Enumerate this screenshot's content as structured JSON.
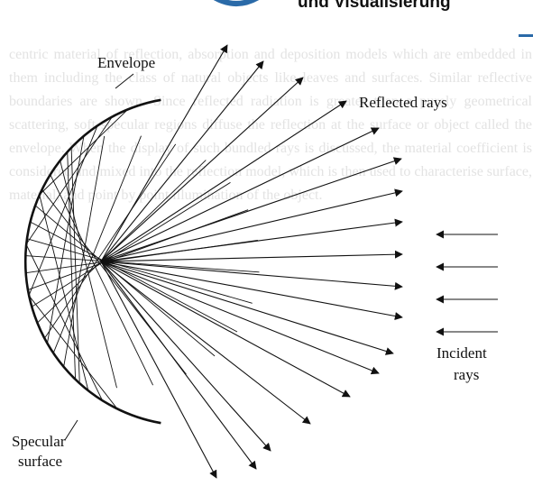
{
  "header": {
    "text": "und Visualisierung",
    "accent_color": "#2a6aa8",
    "logo_icon": "university-seal-icon"
  },
  "background": {
    "text": "centric material of reflection, absorption and deposition models which are embedded in them including the class of natural objects like leaves and surfaces. Similar reflective boundaries are shown. Since reflected radiation is greater than a purely geometrical scattering, soft specular regions diffuse the reflection at the surface or object called the envelope. When the display of such bundled rays is discussed, the material coefficient is considered and mixed into the reflection model, which is then used to characterise surface, material, and point by point illumination of the object."
  },
  "diagram": {
    "labels": {
      "envelope": "Envelope",
      "reflected_rays": "Reflected rays",
      "incident": "Incident",
      "rays": "rays",
      "specular": "Specular",
      "surface": "surface"
    },
    "ink_color": "#111111"
  }
}
